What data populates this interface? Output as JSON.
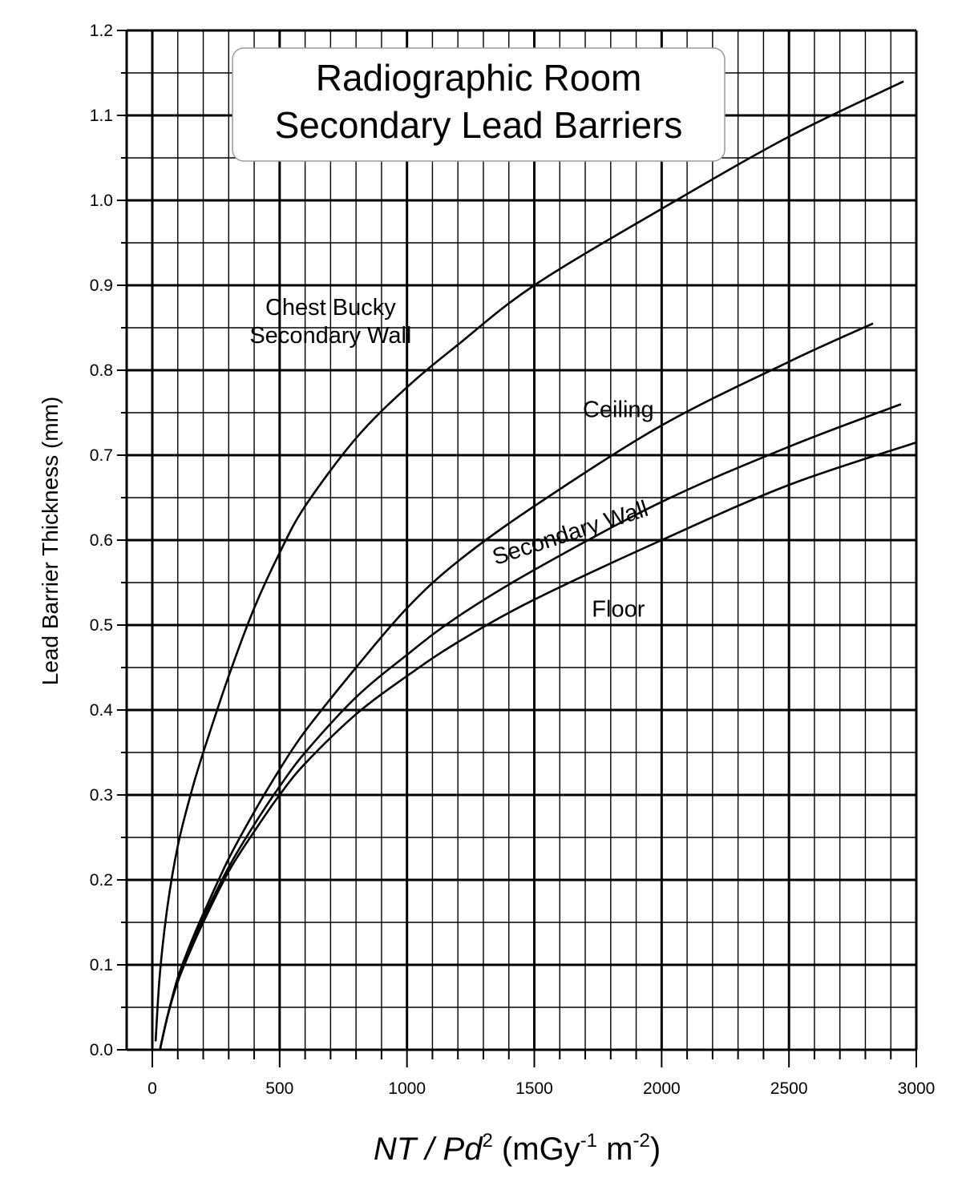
{
  "chart_data": {
    "type": "line",
    "title_lines": [
      "Radiographic Room",
      "Secondary Lead Barriers"
    ],
    "ylabel": "Lead Barrier Thickness (mm)",
    "xlabel": {
      "main": "NT / Pd",
      "exp": "2",
      "units_open": " (mGy",
      "units_exp1": "-1",
      "units_mid": " m",
      "units_exp2": "-2",
      "units_close": ")"
    },
    "xlim": [
      0,
      3000
    ],
    "ylim": [
      0,
      1.2
    ],
    "x_major_step": 500,
    "x_minor_step": 100,
    "y_major_step": 0.1,
    "y_minor_step": 0.05,
    "x_tick_labels": [
      "0",
      "500",
      "1000",
      "1500",
      "2000",
      "2500",
      "3000"
    ],
    "y_tick_labels": [
      "0.0",
      "0.1",
      "0.2",
      "0.3",
      "0.4",
      "0.5",
      "0.6",
      "0.7",
      "0.8",
      "0.9",
      "1.0",
      "1.1",
      "1.2"
    ],
    "grid": true,
    "series": [
      {
        "name": "Chest Bucky Secondary Wall",
        "x": [
          13,
          30,
          60,
          100,
          150,
          200,
          300,
          400,
          500,
          600,
          800,
          1000,
          1200,
          1500,
          2000,
          2500,
          2950
        ],
        "y": [
          0.01,
          0.09,
          0.17,
          0.24,
          0.3,
          0.35,
          0.44,
          0.52,
          0.585,
          0.64,
          0.72,
          0.78,
          0.83,
          0.9,
          0.99,
          1.075,
          1.14
        ]
      },
      {
        "name": "Ceiling",
        "x": [
          30,
          60,
          100,
          150,
          200,
          300,
          400,
          500,
          600,
          800,
          1000,
          1200,
          1500,
          2000,
          2500,
          2830
        ],
        "y": [
          0.0,
          0.04,
          0.085,
          0.125,
          0.16,
          0.225,
          0.28,
          0.33,
          0.375,
          0.45,
          0.52,
          0.575,
          0.64,
          0.735,
          0.81,
          0.855
        ]
      },
      {
        "name": "Secondary Wall",
        "x": [
          30,
          60,
          100,
          150,
          200,
          300,
          400,
          500,
          600,
          800,
          1000,
          1200,
          1500,
          2000,
          2500,
          2940
        ],
        "y": [
          0.0,
          0.04,
          0.082,
          0.12,
          0.155,
          0.215,
          0.265,
          0.31,
          0.35,
          0.415,
          0.465,
          0.51,
          0.565,
          0.645,
          0.71,
          0.76
        ]
      },
      {
        "name": "Floor",
        "x": [
          30,
          60,
          100,
          150,
          200,
          300,
          400,
          500,
          600,
          800,
          1000,
          1200,
          1500,
          2000,
          2500,
          3000
        ],
        "y": [
          0.0,
          0.04,
          0.08,
          0.117,
          0.15,
          0.21,
          0.257,
          0.3,
          0.337,
          0.395,
          0.44,
          0.48,
          0.53,
          0.6,
          0.665,
          0.715
        ]
      }
    ],
    "series_labels": [
      {
        "lines": [
          "Chest Bucky",
          "Secondary Wall"
        ],
        "x": 700,
        "y": 0.865,
        "rotate_deg": 0
      },
      {
        "lines": [
          "Ceiling"
        ],
        "x": 1830,
        "y": 0.745,
        "rotate_deg": 0
      },
      {
        "lines": [
          "Secondary Wall"
        ],
        "x": 1650,
        "y": 0.6,
        "rotate_deg": -18
      },
      {
        "lines": [
          "Floor"
        ],
        "x": 1830,
        "y": 0.51,
        "rotate_deg": 0
      }
    ]
  }
}
